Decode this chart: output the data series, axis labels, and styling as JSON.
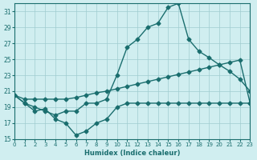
{
  "xlabel": "Humidex (Indice chaleur)",
  "bg_color": "#d0eef0",
  "grid_color": "#a0ccd0",
  "line_color": "#1a6e6e",
  "xlim": [
    0,
    23
  ],
  "ylim": [
    15,
    32
  ],
  "yticks": [
    15,
    17,
    19,
    21,
    23,
    25,
    27,
    29,
    31
  ],
  "xticks": [
    0,
    1,
    2,
    3,
    4,
    5,
    6,
    7,
    8,
    9,
    10,
    11,
    12,
    13,
    14,
    15,
    16,
    17,
    18,
    19,
    20,
    21,
    22,
    23
  ],
  "line1_x": [
    0,
    1,
    2,
    3,
    4,
    5,
    6,
    7,
    8,
    9,
    10,
    11,
    12,
    13,
    14,
    15,
    16,
    17,
    18,
    19,
    20,
    21,
    22,
    23
  ],
  "line1_y": [
    20.5,
    19.5,
    19.0,
    18.5,
    18.0,
    18.5,
    18.5,
    19.5,
    19.5,
    20.0,
    23.0,
    26.5,
    27.5,
    29.0,
    29.5,
    31.5,
    32.0,
    27.5,
    26.0,
    25.2,
    24.3,
    23.5,
    22.5,
    21.0
  ],
  "line2_x": [
    0,
    1,
    2,
    3,
    4,
    5,
    6,
    7,
    8,
    9,
    10,
    11,
    12,
    13,
    14,
    15,
    16,
    17,
    18,
    19,
    20,
    21,
    22,
    23
  ],
  "line2_y": [
    20.5,
    20.0,
    20.0,
    20.0,
    20.0,
    20.0,
    20.2,
    20.5,
    20.8,
    21.0,
    21.3,
    21.6,
    21.9,
    22.2,
    22.5,
    22.8,
    23.1,
    23.4,
    23.7,
    24.0,
    24.3,
    24.6,
    24.9,
    19.5
  ],
  "line3_x": [
    0,
    1,
    2,
    3,
    4,
    5,
    6,
    7,
    8,
    9,
    10,
    11,
    12,
    13,
    14,
    15,
    16,
    17,
    18,
    19,
    20,
    21,
    22,
    23
  ],
  "line3_y": [
    20.5,
    19.5,
    18.5,
    18.8,
    17.5,
    17.0,
    15.5,
    16.0,
    17.0,
    17.5,
    19.0,
    19.5,
    19.5,
    19.5,
    19.5,
    19.5,
    19.5,
    19.5,
    19.5,
    19.5,
    19.5,
    19.5,
    19.5,
    19.5
  ]
}
